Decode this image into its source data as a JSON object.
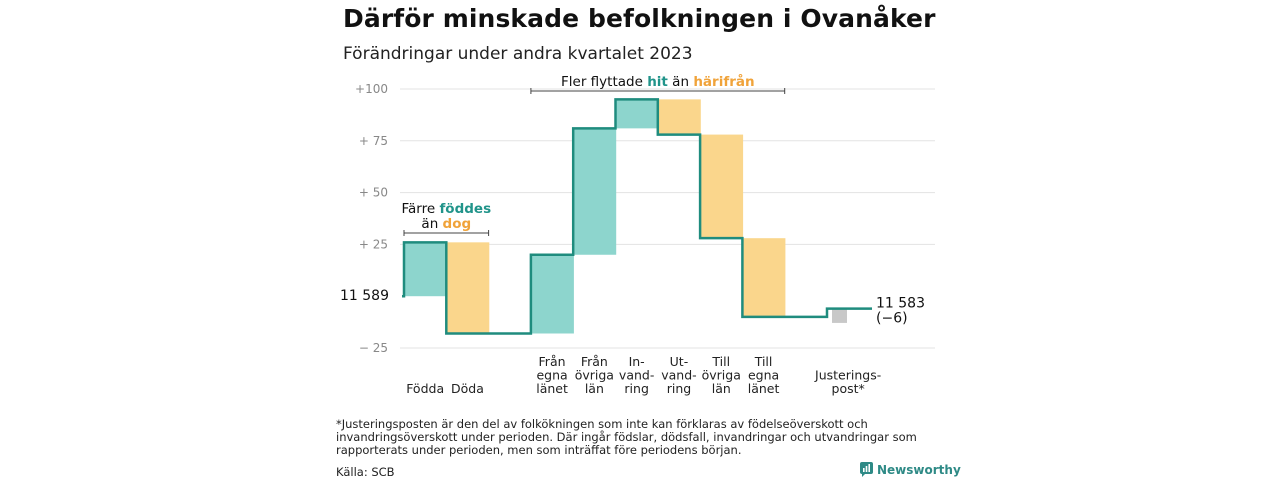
{
  "title": "Därför minskade befolkningen i Ovanåker",
  "subtitle": "Förändringar under andra kvartalet 2023",
  "footnote": "*Justeringsposten är den del av folkökningen som inte kan förklaras av födelseöverskott och invandringsöverskott under perioden. Där ingår födslar, dödsfall, invandringar och utvandringar som rapporterats under perioden, men som inträffat före periodens början.",
  "source": "Källa: SCB",
  "brand": "Newsworthy",
  "colors": {
    "line": "#1f8c7e",
    "increase": "#8dd5cd",
    "decrease": "#fad68c",
    "adjustment": "#c8c8c8",
    "grid": "#e3e3e3",
    "teal_text": "#21948a",
    "orange_text": "#f0a33a"
  },
  "chart_data": {
    "type": "waterfall",
    "start_value": 11589,
    "start_label": "11  589",
    "end_label": "11 583",
    "end_change_label": "(−6)",
    "ylim": [
      -28,
      102
    ],
    "yticks": [
      {
        "value": 100,
        "label": "+100"
      },
      {
        "value": 75,
        "label": "+  75"
      },
      {
        "value": 50,
        "label": "+  50"
      },
      {
        "value": 25,
        "label": "+  25"
      },
      {
        "value": -25,
        "label": "−  25"
      }
    ],
    "steps": [
      {
        "label": "Födda",
        "lines": [
          "Födda"
        ],
        "delta": 26,
        "kind": "increase"
      },
      {
        "label": "Döda",
        "lines": [
          "Döda"
        ],
        "delta": -44,
        "kind": "decrease"
      },
      {
        "label": "",
        "lines": [],
        "delta": 0,
        "kind": "gap"
      },
      {
        "label": "Från egna länet",
        "lines": [
          "Från",
          "egna",
          "länet"
        ],
        "delta": 38,
        "kind": "increase"
      },
      {
        "label": "Från övriga län",
        "lines": [
          "Från",
          "övriga",
          "län"
        ],
        "delta": 61,
        "kind": "increase"
      },
      {
        "label": "Invandring",
        "lines": [
          "In-",
          "vand-",
          "ring"
        ],
        "delta": 14,
        "kind": "increase"
      },
      {
        "label": "Utvandring",
        "lines": [
          "Ut-",
          "vand-",
          "ring"
        ],
        "delta": -17,
        "kind": "decrease"
      },
      {
        "label": "Till övriga län",
        "lines": [
          "Till",
          "övriga",
          "län"
        ],
        "delta": -50,
        "kind": "decrease"
      },
      {
        "label": "Till egna länet",
        "lines": [
          "Till",
          "egna",
          "länet"
        ],
        "delta": -38,
        "kind": "decrease"
      },
      {
        "label": "",
        "lines": [],
        "delta": 0,
        "kind": "gap"
      },
      {
        "label": "Justeringspost*",
        "lines": [
          "Justerings-",
          "post*"
        ],
        "delta": 4,
        "kind": "adjustment"
      }
    ],
    "annotations": [
      {
        "name": "births-deaths",
        "from_step": 0,
        "to_step": 1,
        "y": 31,
        "row1": [
          {
            "text": "Färre ",
            "hl": ""
          },
          {
            "text": "föddes",
            "hl": "teal"
          }
        ],
        "row2": [
          {
            "text": "än ",
            "hl": ""
          },
          {
            "text": "dog",
            "hl": "orange"
          }
        ]
      },
      {
        "name": "migration",
        "from_step": 3,
        "to_step": 8,
        "y": 99,
        "row1": [
          {
            "text": "Fler flyttade ",
            "hl": ""
          },
          {
            "text": "hit",
            "hl": "teal"
          },
          {
            "text": "  än ",
            "hl": ""
          },
          {
            "text": "härifrån",
            "hl": "orange"
          }
        ],
        "row2": []
      }
    ]
  }
}
